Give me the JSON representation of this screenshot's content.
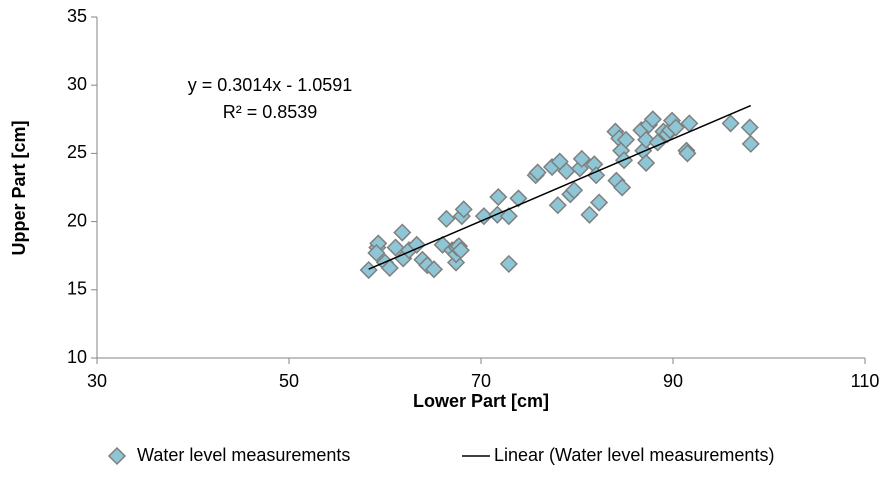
{
  "chart_data": {
    "type": "scatter",
    "x_label": "Lower Part [cm]",
    "y_label": "Upper Part [cm]",
    "xlim": [
      30,
      110
    ],
    "xticks": [
      30,
      50,
      70,
      90,
      110
    ],
    "ylim": [
      10,
      35
    ],
    "yticks": [
      10,
      15,
      20,
      25,
      30,
      35
    ],
    "legend": "bottom",
    "series": [
      {
        "name": "Water level measurements",
        "color": "#8ec6d6",
        "x": [
          58.3,
          59.2,
          59.3,
          59.1,
          60.0,
          60.5,
          61.1,
          61.9,
          61.8,
          62.5,
          63.3,
          63.9,
          64.4,
          65.1,
          66.0,
          66.4,
          67.0,
          67.4,
          67.4,
          67.5,
          67.7,
          67.9,
          68.0,
          68.2,
          70.3,
          71.7,
          71.8,
          72.9,
          72.9,
          73.9,
          75.7,
          75.9,
          77.4,
          78.0,
          78.2,
          78.9,
          79.3,
          79.7,
          80.3,
          80.5,
          81.3,
          81.8,
          82.0,
          82.3,
          84.0,
          84.1,
          84.4,
          84.6,
          84.7,
          84.9,
          85.1,
          86.7,
          86.9,
          87.2,
          87.2,
          87.5,
          87.9,
          88.4,
          89.0,
          89.4,
          89.7,
          89.9,
          90.3,
          91.4,
          91.5,
          91.7,
          96.0,
          98.0,
          98.1
        ],
        "values": [
          16.45,
          18.1,
          18.4,
          17.7,
          17.0,
          16.6,
          18.1,
          17.3,
          19.2,
          17.9,
          18.3,
          17.2,
          16.8,
          16.5,
          18.3,
          20.2,
          17.9,
          17.0,
          17.6,
          18.1,
          18.2,
          17.9,
          20.4,
          20.9,
          20.4,
          20.5,
          21.8,
          20.4,
          16.9,
          21.7,
          23.4,
          23.6,
          24.0,
          21.2,
          24.4,
          23.7,
          22.0,
          22.3,
          23.9,
          24.6,
          20.5,
          24.2,
          23.4,
          21.4,
          26.6,
          23.0,
          26.1,
          25.2,
          22.5,
          24.5,
          26.0,
          26.7,
          25.2,
          26.0,
          24.3,
          27.1,
          27.5,
          25.8,
          26.6,
          26.4,
          26.7,
          27.4,
          26.9,
          25.2,
          25.0,
          27.2,
          27.2,
          26.9,
          25.7
        ]
      }
    ],
    "trendline": {
      "name": "Linear (Water level measurements)",
      "color": "#000000",
      "equation": "y = 0.3014x - 1.0591",
      "r_squared": "R² = 0.8539",
      "slope": 0.3014,
      "intercept": -1.0591
    }
  }
}
